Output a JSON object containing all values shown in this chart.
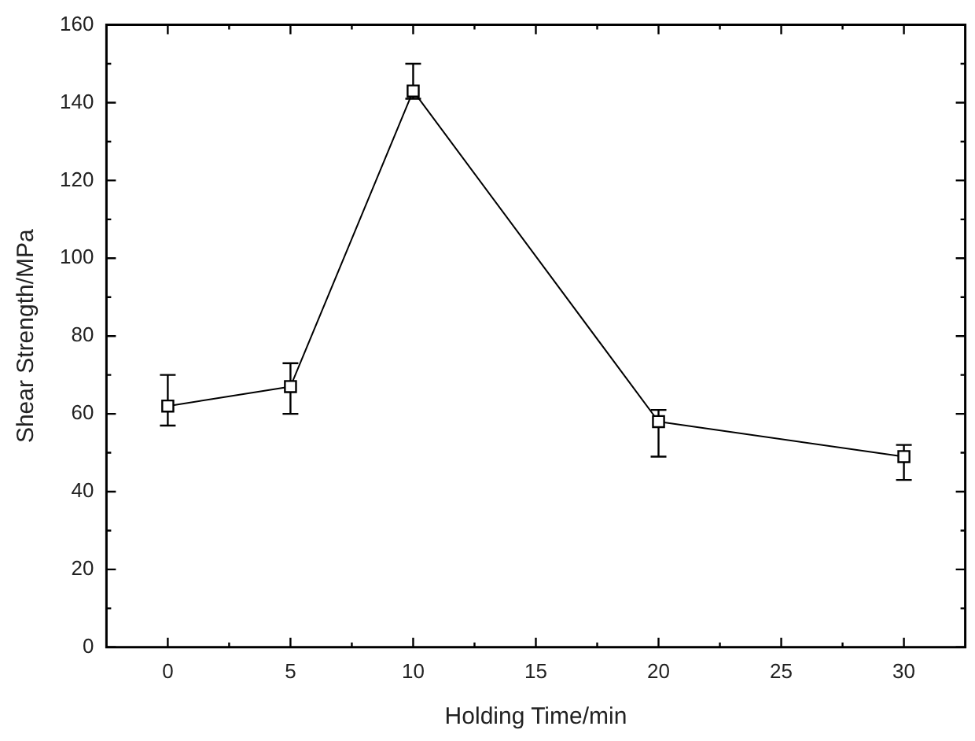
{
  "chart_data": {
    "type": "line",
    "xlabel": "Holding Time/min",
    "ylabel": "Shear Strength/MPa",
    "x": [
      0,
      5,
      10,
      20,
      30
    ],
    "series": [
      {
        "color": "#000000",
        "values": [
          62,
          67,
          143,
          58,
          49
        ],
        "errors": [
          [
            57,
            70
          ],
          [
            60,
            73
          ],
          [
            141,
            150
          ],
          [
            49,
            61
          ],
          [
            43,
            52
          ]
        ]
      }
    ],
    "marker": "square",
    "line_style": "solid",
    "xlim": [
      -2.5,
      32.5
    ],
    "xticks": [
      0,
      {
        "value": 2.5,
        "label": null
      },
      5,
      {
        "value": 7.5,
        "label": null
      },
      10,
      {
        "value": 12.5,
        "label": null
      },
      15,
      {
        "value": 17.5,
        "label": null
      },
      20,
      {
        "value": 22.5,
        "label": null
      },
      25,
      {
        "value": 27.5,
        "label": null
      },
      30
    ],
    "ylim": [
      0,
      160
    ],
    "yticks": [
      0,
      {
        "value": 10,
        "label": null
      },
      20,
      {
        "value": 30,
        "label": null
      },
      40,
      {
        "value": 50,
        "label": null
      },
      60,
      {
        "value": 70,
        "label": null
      },
      80,
      {
        "value": 90,
        "label": null
      },
      100,
      {
        "value": 110,
        "label": null
      },
      120,
      {
        "value": 130,
        "label": null
      },
      140,
      {
        "value": 150,
        "label": null
      },
      160
    ]
  }
}
